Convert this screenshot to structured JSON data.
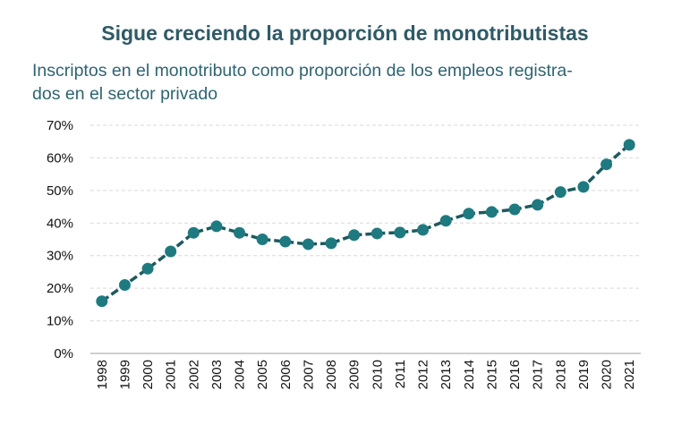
{
  "chart_data": {
    "type": "line",
    "title": "Sigue creciendo la proporción de monotributistas",
    "subtitle": "Inscriptos en el monotributo como proporción de los empleos registra-dos en el sector privado",
    "subtitle_lines": [
      "Inscriptos en el monotributo como proporción de los empleos registra-",
      "dos en el sector privado"
    ],
    "xlabel": "",
    "ylabel": "",
    "categories": [
      "1998",
      "1999",
      "2000",
      "2001",
      "2002",
      "2003",
      "2004",
      "2005",
      "2006",
      "2007",
      "2008",
      "2009",
      "2010",
      "2011",
      "2012",
      "2013",
      "2014",
      "2015",
      "2016",
      "2017",
      "2018",
      "2019",
      "2020",
      "2021"
    ],
    "values": [
      16,
      21,
      26,
      31.3,
      37,
      39,
      37,
      35,
      34.3,
      33.5,
      33.8,
      36.3,
      36.8,
      37.1,
      37.9,
      40.7,
      42.9,
      43.4,
      44.2,
      45.6,
      49.5,
      51.1,
      58,
      64
    ],
    "ylim": [
      0,
      70
    ],
    "yticks": [
      "0%",
      "10%",
      "20%",
      "30%",
      "40%",
      "50%",
      "60%",
      "70%"
    ],
    "grid": true,
    "line_style": "dashed",
    "color": "#1f7a80",
    "line_color": "#1d5a5c"
  }
}
